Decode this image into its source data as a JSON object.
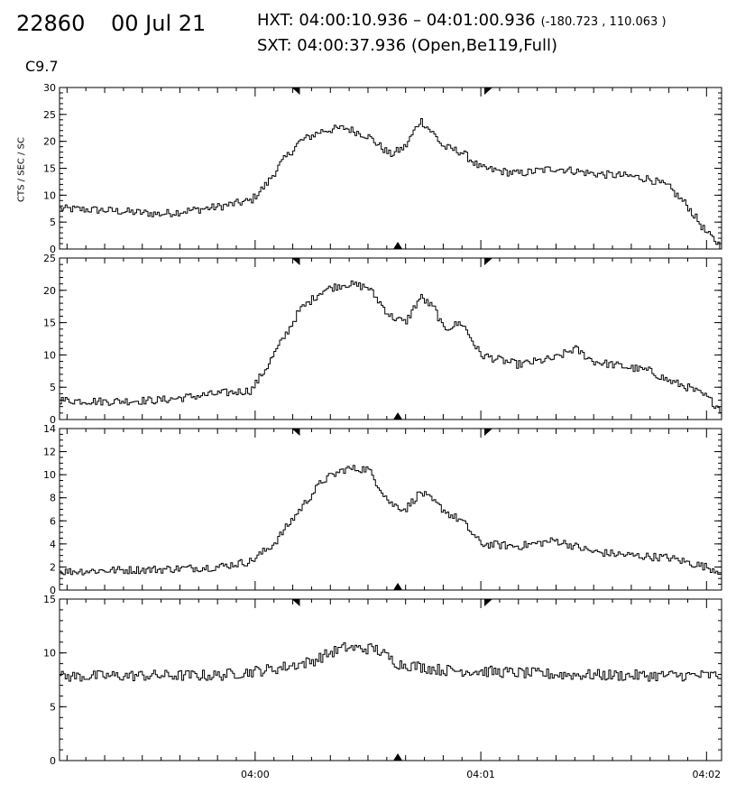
{
  "header": {
    "id": "22860",
    "date": "00 Jul 21",
    "hxt": "HXT: 04:00:10.936 – 04:01:00.936",
    "hxt_coords": "(-180.723 , 110.063 )",
    "sxt": "SXT: 04:00:37.936 (Open,Be119,Full)",
    "goes_class": "C9.7",
    "ylabel": "CTS / SEC / SC"
  },
  "chart_data": {
    "type": "line",
    "style": "step",
    "x_unit": "UT time (HH:MM:SS)",
    "x_range": [
      "03:59:08",
      "04:02:04"
    ],
    "x_ticks": [
      "04:00",
      "04:01",
      "04:02"
    ],
    "markers": {
      "integration_start": "04:00:10.936",
      "integration_end": "04:01:00.936",
      "sxt_time": "04:00:37.936"
    },
    "panels": [
      {
        "ylim": [
          0,
          30
        ],
        "yticks": [
          "0",
          "5",
          "10",
          "15",
          "20",
          "25",
          "30"
        ],
        "x": [
          "03:59:08",
          "03:59:20",
          "03:59:35",
          "03:59:50",
          "03:59:59",
          "04:00:03",
          "04:00:07",
          "04:00:12",
          "04:00:18",
          "04:00:24",
          "04:00:30",
          "04:00:36",
          "04:00:40",
          "04:00:44",
          "04:00:48",
          "04:00:50",
          "04:00:55",
          "04:01:00",
          "04:01:10",
          "04:01:20",
          "04:01:30",
          "04:01:40",
          "04:01:45",
          "04:01:50",
          "04:01:55",
          "04:02:00",
          "04:02:04"
        ],
        "values": [
          7.5,
          7.2,
          6.5,
          7.8,
          9,
          12,
          16,
          20,
          22,
          22.5,
          21,
          17.5,
          19,
          24,
          21,
          19,
          18,
          15,
          14,
          15,
          14,
          13.5,
          13,
          11.5,
          8,
          3,
          0.5
        ]
      },
      {
        "ylim": [
          0,
          25
        ],
        "yticks": [
          "0",
          "5",
          "10",
          "15",
          "20",
          "25"
        ],
        "x": [
          "03:59:08",
          "03:59:20",
          "03:59:35",
          "03:59:50",
          "03:59:59",
          "04:00:03",
          "04:00:07",
          "04:00:12",
          "04:00:18",
          "04:00:24",
          "04:00:30",
          "04:00:36",
          "04:00:40",
          "04:00:44",
          "04:00:48",
          "04:00:50",
          "04:00:55",
          "04:01:00",
          "04:01:10",
          "04:01:20",
          "04:01:25",
          "04:01:30",
          "04:01:40",
          "04:01:45",
          "04:01:50",
          "04:01:55",
          "04:02:00",
          "04:02:04"
        ],
        "values": [
          3,
          2.8,
          3,
          4,
          4.5,
          8,
          12,
          17,
          20,
          21,
          20.5,
          16,
          15,
          19,
          17,
          14,
          15,
          10,
          8.5,
          9.5,
          11,
          9,
          8,
          7.5,
          6,
          5,
          3.5,
          1.5
        ]
      },
      {
        "ylim": [
          0,
          14
        ],
        "yticks": [
          "0",
          "2",
          "4",
          "6",
          "8",
          "10",
          "12",
          "14"
        ],
        "x": [
          "03:59:08",
          "03:59:20",
          "03:59:35",
          "03:59:50",
          "03:59:59",
          "04:00:05",
          "04:00:12",
          "04:00:18",
          "04:00:24",
          "04:00:30",
          "04:00:36",
          "04:00:40",
          "04:00:44",
          "04:00:48",
          "04:00:52",
          "04:00:55",
          "04:01:00",
          "04:01:10",
          "04:01:20",
          "04:01:30",
          "04:01:40",
          "04:01:50",
          "04:02:00",
          "04:02:04"
        ],
        "values": [
          1.6,
          1.7,
          1.8,
          2,
          2.5,
          4,
          7,
          9.5,
          10.5,
          10.5,
          7.5,
          7,
          8.5,
          7.5,
          6.5,
          6,
          4,
          3.8,
          4.3,
          3.3,
          3,
          2.8,
          2,
          1.6
        ]
      },
      {
        "ylim": [
          0,
          15
        ],
        "yticks": [
          "0",
          "5",
          "10",
          "15"
        ],
        "x": [
          "03:59:08",
          "03:59:30",
          "03:59:50",
          "04:00:05",
          "04:00:15",
          "04:00:20",
          "04:00:24",
          "04:00:28",
          "04:00:32",
          "04:00:38",
          "04:00:50",
          "04:01:00",
          "04:01:20",
          "04:01:40",
          "04:02:04"
        ],
        "values": [
          7.8,
          7.9,
          7.9,
          8.5,
          9.2,
          10,
          10.5,
          10.4,
          10.4,
          9,
          8.4,
          8.3,
          8,
          7.9,
          7.9
        ]
      }
    ]
  }
}
